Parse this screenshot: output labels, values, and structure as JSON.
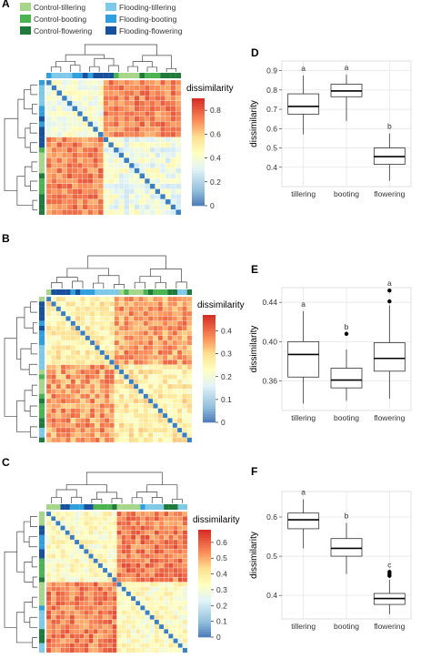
{
  "legend": {
    "items": [
      {
        "label": "Control-tillering",
        "color": "#a6d68a"
      },
      {
        "label": "Control-booting",
        "color": "#4bb34f"
      },
      {
        "label": "Control-flowering",
        "color": "#1f7a3b"
      },
      {
        "label": "Flooding-tillering",
        "color": "#7fc9e8"
      },
      {
        "label": "Flooding-booting",
        "color": "#2f9fde"
      },
      {
        "label": "Flooding-flowering",
        "color": "#17509b"
      }
    ]
  },
  "colors": {
    "diagonal": "#3a7fc0",
    "low": "#4575b4",
    "mid": "#ffffbf",
    "high": "#d73027",
    "box_median": "#000000",
    "grid": "#e6e6e6"
  },
  "heatmaps": [
    {
      "panel": "A",
      "legend_title": "dissimilarity",
      "scale_ticks": [
        "0.8",
        "0.6",
        "0.4",
        "0.2",
        "0"
      ],
      "scale_range": [
        0,
        0.9
      ],
      "n": 26
    },
    {
      "panel": "B",
      "legend_title": "dissimilarity",
      "scale_ticks": [
        "0.4",
        "0.3",
        "0.2",
        "0.1",
        "0"
      ],
      "scale_range": [
        0,
        0.47
      ],
      "n": 30
    },
    {
      "panel": "C",
      "legend_title": "dissimilarity",
      "scale_ticks": [
        "0.6",
        "0.5",
        "0.4",
        "0.3",
        "0.2",
        "0.1",
        "0"
      ],
      "scale_range": [
        0,
        0.68
      ],
      "n": 30
    }
  ],
  "chart_data": [
    {
      "panel": "D",
      "type": "box",
      "ylabel": "dissimilarity",
      "ylim": [
        0.3,
        0.95
      ],
      "yticks": [
        "0.9",
        "0.8",
        "0.7",
        "0.6",
        "0.5",
        "0.4"
      ],
      "ytick_values": [
        0.9,
        0.8,
        0.7,
        0.6,
        0.5,
        0.4
      ],
      "categories": [
        "tillering",
        "booting",
        "flowering"
      ],
      "boxes": [
        {
          "min": 0.57,
          "q1": 0.675,
          "median": 0.715,
          "q3": 0.78,
          "max": 0.875,
          "letter": "a",
          "outliers": []
        },
        {
          "min": 0.64,
          "q1": 0.765,
          "median": 0.795,
          "q3": 0.83,
          "max": 0.88,
          "letter": "a",
          "outliers": []
        },
        {
          "min": 0.33,
          "q1": 0.415,
          "median": 0.455,
          "q3": 0.5,
          "max": 0.575,
          "letter": "b",
          "outliers": []
        }
      ]
    },
    {
      "panel": "E",
      "type": "box",
      "ylabel": "dissimilarity",
      "ylim": [
        0.33,
        0.455
      ],
      "yticks": [
        "0.44",
        "0.40",
        "0.36"
      ],
      "ytick_values": [
        0.44,
        0.4,
        0.36
      ],
      "categories": [
        "tillering",
        "booting",
        "flowering"
      ],
      "boxes": [
        {
          "min": 0.337,
          "q1": 0.364,
          "median": 0.387,
          "q3": 0.4,
          "max": 0.431,
          "letter": "a",
          "outliers": []
        },
        {
          "min": 0.34,
          "q1": 0.353,
          "median": 0.361,
          "q3": 0.373,
          "max": 0.392,
          "letter": "b",
          "outliers": [
            0.408
          ]
        },
        {
          "min": 0.342,
          "q1": 0.37,
          "median": 0.383,
          "q3": 0.399,
          "max": 0.437,
          "letter": "a",
          "outliers": [
            0.441,
            0.452
          ]
        }
      ]
    },
    {
      "panel": "F",
      "type": "box",
      "ylabel": "dissimilarity",
      "ylim": [
        0.34,
        0.665
      ],
      "yticks": [
        "0.6",
        "0.5",
        "0.4"
      ],
      "ytick_values": [
        0.6,
        0.5,
        0.4
      ],
      "categories": [
        "tillering",
        "booting",
        "flowering"
      ],
      "boxes": [
        {
          "min": 0.52,
          "q1": 0.57,
          "median": 0.593,
          "q3": 0.61,
          "max": 0.645,
          "letter": "a",
          "outliers": []
        },
        {
          "min": 0.455,
          "q1": 0.5,
          "median": 0.52,
          "q3": 0.545,
          "max": 0.585,
          "letter": "b",
          "outliers": []
        },
        {
          "min": 0.352,
          "q1": 0.377,
          "median": 0.392,
          "q3": 0.405,
          "max": 0.44,
          "letter": "c",
          "outliers": [
            0.45,
            0.455,
            0.46
          ]
        }
      ]
    }
  ]
}
